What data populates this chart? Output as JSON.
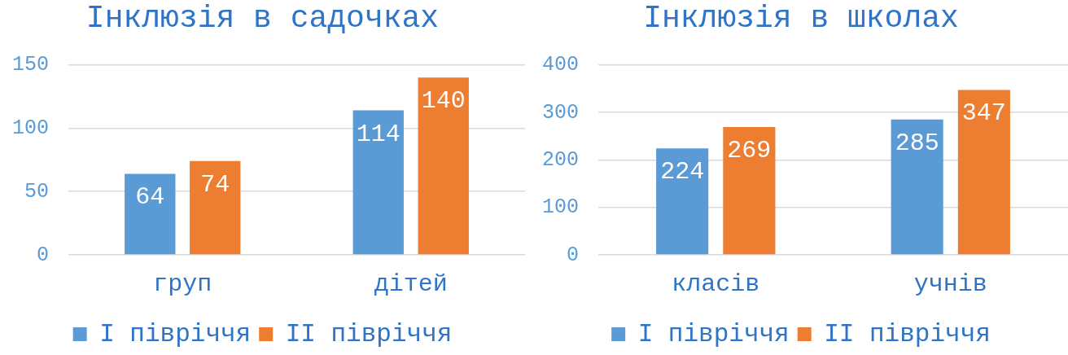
{
  "chart_data": [
    {
      "type": "bar",
      "title": "Інклюзія в садочках",
      "categories": [
        "груп",
        "дітей"
      ],
      "series": [
        {
          "name": "I півріччя",
          "color": "#5b9bd5",
          "values": [
            64,
            114
          ]
        },
        {
          "name": "II півріччя",
          "color": "#ed7d31",
          "values": [
            74,
            140
          ]
        }
      ],
      "ylim": [
        0,
        150
      ],
      "yticks": [
        0,
        50,
        100,
        150
      ],
      "grid": "y",
      "legend": "bottom",
      "data_labels": true
    },
    {
      "type": "bar",
      "title": "Інклюзія в школах",
      "categories": [
        "класів",
        "учнів"
      ],
      "series": [
        {
          "name": "I півріччя",
          "color": "#5b9bd5",
          "values": [
            224,
            285
          ]
        },
        {
          "name": "II півріччя",
          "color": "#ed7d31",
          "values": [
            269,
            347
          ]
        }
      ],
      "ylim": [
        0,
        400
      ],
      "yticks": [
        0,
        100,
        200,
        300,
        400
      ],
      "grid": "y",
      "legend": "bottom",
      "data_labels": true
    }
  ]
}
